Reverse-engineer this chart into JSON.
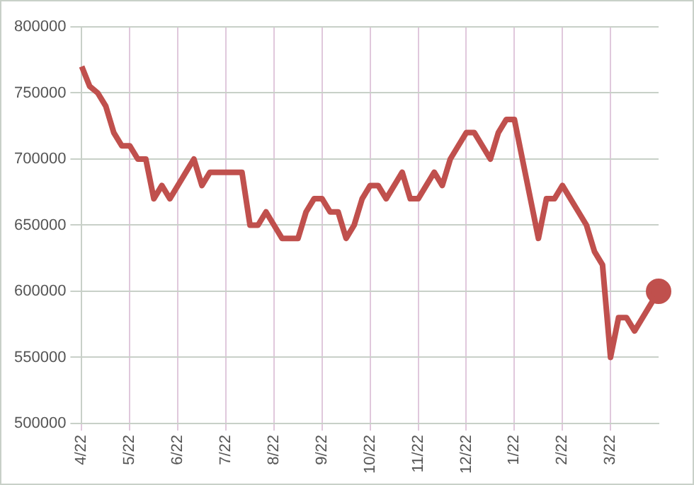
{
  "chart_data": {
    "type": "line",
    "categories": [
      "4/22",
      null,
      null,
      null,
      null,
      null,
      "5/22",
      null,
      null,
      null,
      null,
      null,
      "6/22",
      null,
      null,
      null,
      null,
      null,
      "7/22",
      null,
      null,
      null,
      null,
      null,
      "8/22",
      null,
      null,
      null,
      null,
      null,
      "9/22",
      null,
      null,
      null,
      null,
      null,
      "10/22",
      null,
      null,
      null,
      null,
      null,
      "11/22",
      null,
      null,
      null,
      null,
      null,
      "12/22",
      null,
      null,
      null,
      null,
      null,
      "1/22",
      null,
      null,
      null,
      null,
      null,
      "2/22",
      null,
      null,
      null,
      null,
      null,
      "3/22",
      null,
      null,
      null,
      null,
      null,
      null
    ],
    "ylim": [
      500000,
      800000
    ],
    "yticks": [
      500000,
      550000,
      600000,
      650000,
      700000,
      750000,
      800000
    ],
    "grid": true,
    "series": [
      {
        "color": "#c0504d",
        "values": [
          770000,
          755000,
          750000,
          740000,
          720000,
          710000,
          710000,
          700000,
          700000,
          670000,
          680000,
          670000,
          680000,
          690000,
          700000,
          680000,
          690000,
          690000,
          690000,
          690000,
          690000,
          650000,
          650000,
          660000,
          650000,
          640000,
          640000,
          640000,
          660000,
          670000,
          670000,
          660000,
          660000,
          640000,
          650000,
          670000,
          680000,
          680000,
          670000,
          680000,
          690000,
          670000,
          670000,
          680000,
          690000,
          680000,
          700000,
          710000,
          720000,
          720000,
          710000,
          700000,
          720000,
          730000,
          730000,
          700000,
          670000,
          640000,
          670000,
          670000,
          680000,
          670000,
          660000,
          650000,
          630000,
          620000,
          550000,
          580000,
          580000,
          570000,
          580000,
          590000,
          600000
        ]
      }
    ]
  }
}
